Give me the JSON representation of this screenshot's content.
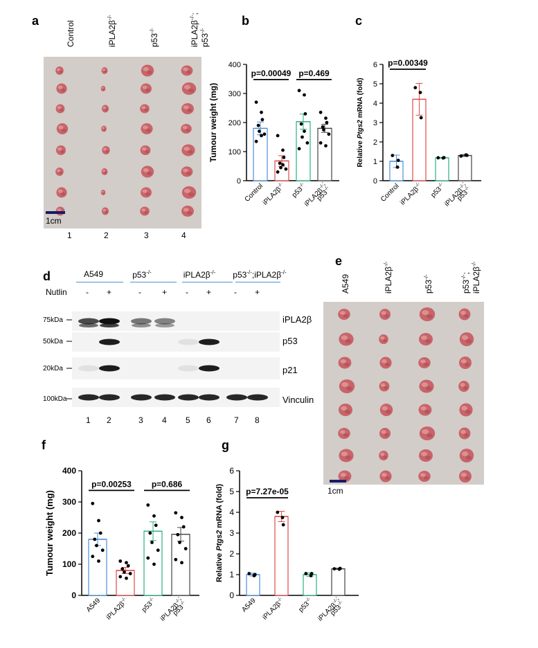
{
  "panels": {
    "a": {
      "letter": "a",
      "groups": [
        "Control",
        "iPLA2β-/-",
        "p53-/-",
        "iPLA2β-/-;\np53-/-"
      ],
      "lanes": [
        "1",
        "2",
        "3",
        "4"
      ],
      "scale_label": "1cm"
    },
    "b": {
      "letter": "b",
      "ylabel": "Tumour weight (mg)",
      "pvals": [
        "p=0.00049",
        "p=0.469"
      ]
    },
    "c": {
      "letter": "c",
      "ylabel_prefix": "Relative ",
      "ylabel_gene": "Ptgs2",
      "ylabel_suffix": " mRNA (fold)",
      "pvals": [
        "p=0.00349"
      ]
    },
    "d": {
      "letter": "d",
      "groups": [
        "A549",
        "p53-/-",
        "iPLA2β-/-",
        "p53-/-;iPLA2β-/-"
      ],
      "nutlin_label": "Nutlin",
      "treatment": [
        "-",
        "+",
        "-",
        "+",
        "-",
        "+",
        "-",
        "+"
      ],
      "lanes": [
        "1",
        "2",
        "3",
        "4",
        "5",
        "6",
        "7",
        "8"
      ],
      "markers": [
        "75kDa",
        "50kDa",
        "20kDa",
        "100kDa"
      ],
      "proteins": [
        "iPLA2β",
        "p53",
        "p21",
        "Vinculin"
      ]
    },
    "e": {
      "letter": "e",
      "groups": [
        "A549",
        "iPLA2β-/-",
        "p53-/-",
        "p53-/-;\niPLA2β-/-"
      ],
      "scale_label": "1cm"
    },
    "f": {
      "letter": "f",
      "ylabel": "Tumour weight (mg)",
      "pvals": [
        "p=0.00253",
        "p=0.686"
      ]
    },
    "g": {
      "letter": "g",
      "ylabel_prefix": "Relative ",
      "ylabel_gene": "Ptgs2",
      "ylabel_suffix": " mRNA (fold)",
      "pvals": [
        "p=7.27e-05"
      ]
    }
  },
  "colors": {
    "control": "#4a90d9",
    "ipla2b": "#e04848",
    "p53": "#2bb07f",
    "double": "#444444",
    "photo_bg": "#d2cdc8",
    "tumour": "#c8646a"
  },
  "chart_data": [
    {
      "panel": "b",
      "type": "bar",
      "categories": [
        "Control",
        "iPLA2β-/-",
        "p53-/-",
        "iPLA2β-/-;\np53-/-"
      ],
      "values": [
        180,
        68,
        203,
        180
      ],
      "errors": [
        22,
        18,
        26,
        14
      ],
      "points": [
        [
          270,
          235,
          210,
          190,
          170,
          160,
          135,
          155
        ],
        [
          155,
          105,
          80,
          60,
          45,
          40,
          30,
          55
        ],
        [
          310,
          295,
          230,
          195,
          150,
          130,
          110,
          170
        ],
        [
          235,
          215,
          200,
          185,
          175,
          160,
          130,
          120
        ]
      ],
      "ylabel": "Tumour weight (mg)",
      "ylim": [
        0,
        400
      ],
      "yticks": [
        0,
        100,
        200,
        300,
        400
      ]
    },
    {
      "panel": "c",
      "type": "bar",
      "categories": [
        "Control",
        "iPLA2β-/-",
        "p53-/-",
        "iPLA2β-/-;\np53-/-"
      ],
      "values": [
        1.0,
        4.2,
        1.18,
        1.3
      ],
      "errors": [
        0.32,
        0.82,
        0.02,
        0.05
      ],
      "points": [
        [
          1.3,
          0.7,
          1.05
        ],
        [
          4.8,
          4.55,
          3.25
        ],
        [
          1.18,
          1.17,
          1.19
        ],
        [
          1.27,
          1.33,
          1.31
        ]
      ],
      "ylabel": "Relative Ptgs2 mRNA (fold)",
      "ylim": [
        0,
        6
      ],
      "yticks": [
        0,
        1,
        2,
        3,
        4,
        5,
        6
      ]
    },
    {
      "panel": "f",
      "type": "bar",
      "categories": [
        "A549",
        "iPLA2β-/-",
        "p53-/-",
        "iPLA2β-/-;\np53-/-"
      ],
      "values": [
        180,
        80,
        206,
        196
      ],
      "errors": [
        20,
        10,
        30,
        22
      ],
      "points": [
        [
          295,
          240,
          200,
          180,
          160,
          145,
          125,
          110
        ],
        [
          110,
          105,
          95,
          85,
          75,
          70,
          60,
          55
        ],
        [
          290,
          255,
          225,
          200,
          170,
          145,
          120,
          100
        ],
        [
          265,
          250,
          220,
          195,
          170,
          150,
          115,
          105
        ]
      ],
      "ylabel": "Tumour weight (mg)",
      "ylim": [
        0,
        400
      ],
      "yticks": [
        0,
        100,
        200,
        300,
        400
      ]
    },
    {
      "panel": "g",
      "type": "bar",
      "categories": [
        "A549",
        "iPLA2β-/-",
        "p53-/-",
        "iPLA2β-/-;\np53-/-"
      ],
      "values": [
        1.0,
        3.8,
        1.0,
        1.28
      ],
      "errors": [
        0.07,
        0.25,
        0.08,
        0.03
      ],
      "points": [
        [
          1.05,
          0.95,
          1.0
        ],
        [
          4.0,
          3.75,
          3.4
        ],
        [
          1.05,
          0.95,
          1.05
        ],
        [
          1.28,
          1.26,
          1.3
        ]
      ],
      "ylabel": "Relative Ptgs2 mRNA (fold)",
      "ylim": [
        0,
        6
      ],
      "yticks": [
        0,
        1,
        2,
        3,
        4,
        5,
        6
      ]
    }
  ]
}
